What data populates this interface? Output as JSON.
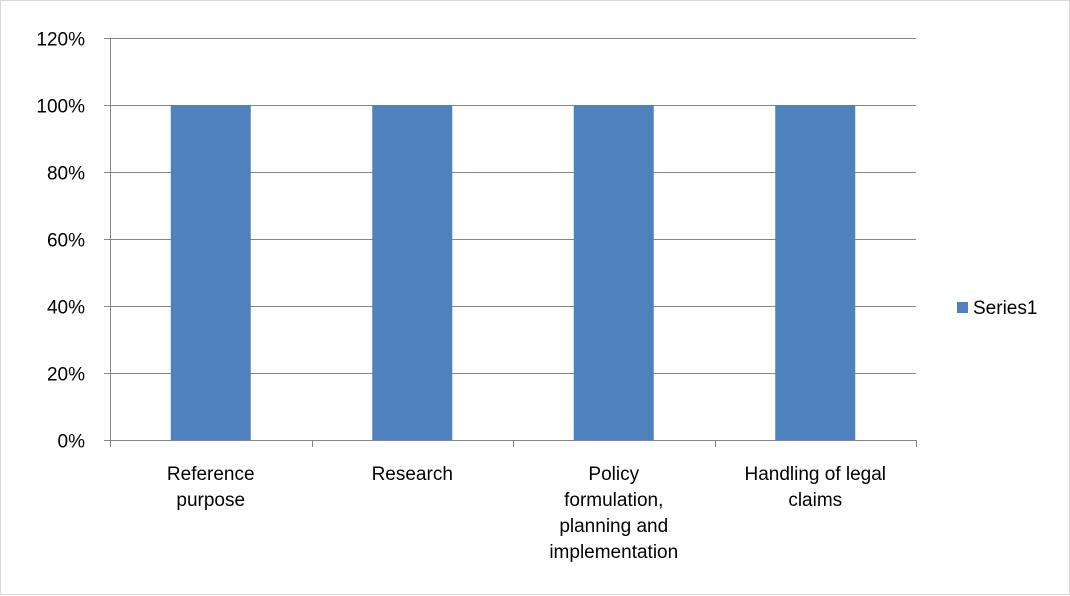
{
  "chart_data": {
    "type": "bar",
    "categories": [
      [
        "Reference",
        "purpose"
      ],
      [
        "Research"
      ],
      [
        "Policy",
        "formulation,",
        "planning and",
        "implementation"
      ],
      [
        "Handling of legal",
        "claims"
      ]
    ],
    "series": [
      {
        "name": "Series1",
        "color": "#4f81bd",
        "values": [
          100,
          100,
          100,
          100
        ]
      }
    ],
    "ylim": [
      0,
      120
    ],
    "ytick_values": [
      0,
      20,
      40,
      60,
      80,
      100,
      120
    ],
    "ytick_labels": [
      "0%",
      "20%",
      "40%",
      "60%",
      "80%",
      "100%",
      "120%"
    ],
    "grid": true,
    "gridline_color": "#868686",
    "axis_color": "#868686",
    "legend": {
      "position": "right",
      "entries": [
        "Series1"
      ]
    },
    "title": "",
    "xlabel": "",
    "ylabel": ""
  }
}
